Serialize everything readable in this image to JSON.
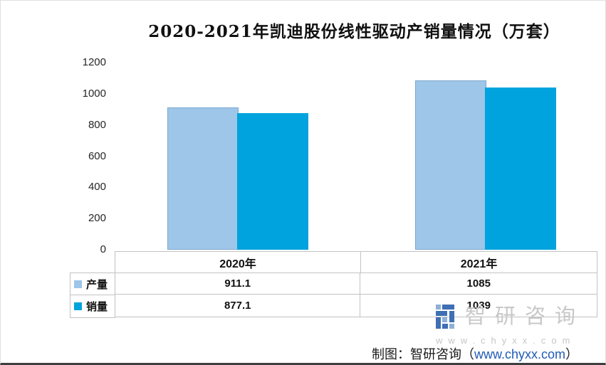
{
  "title": "2020-2021年凯迪股份线性驱动产销量情况（万套）",
  "chart_data": {
    "type": "bar",
    "title": "2020-2021年凯迪股份线性驱动产销量情况（万套）",
    "unit": "万套",
    "categories": [
      "2020年",
      "2021年"
    ],
    "series": [
      {
        "name": "产量",
        "color": "#9DC6E8",
        "values": [
          911.1,
          1085
        ]
      },
      {
        "name": "销量",
        "color": "#00A3DE",
        "values": [
          877.1,
          1039
        ]
      }
    ],
    "ylim": [
      0,
      1200
    ],
    "yticks": [
      0,
      200,
      400,
      600,
      800,
      1000,
      1200
    ],
    "grid": false,
    "legend_position": "data-table-left",
    "xlabel": "",
    "ylabel": ""
  },
  "table": {
    "col_headers": [
      "2020年",
      "2021年"
    ],
    "rows": [
      {
        "label": "产量",
        "values": [
          "911.1",
          "1085"
        ]
      },
      {
        "label": "销量",
        "values": [
          "877.1",
          "1039"
        ]
      }
    ]
  },
  "watermark": {
    "brand": "智研咨询",
    "url": "www.chyxx.com",
    "text_gray": "#c8c8c8",
    "logo_blue": "#3f6fb4",
    "logo_light_blue": "#8fb0d8"
  },
  "caption": {
    "prefix": "制图：智研咨询（",
    "url": "www.chyxx.com",
    "suffix": "）",
    "url_color": "#1f5bb5"
  }
}
